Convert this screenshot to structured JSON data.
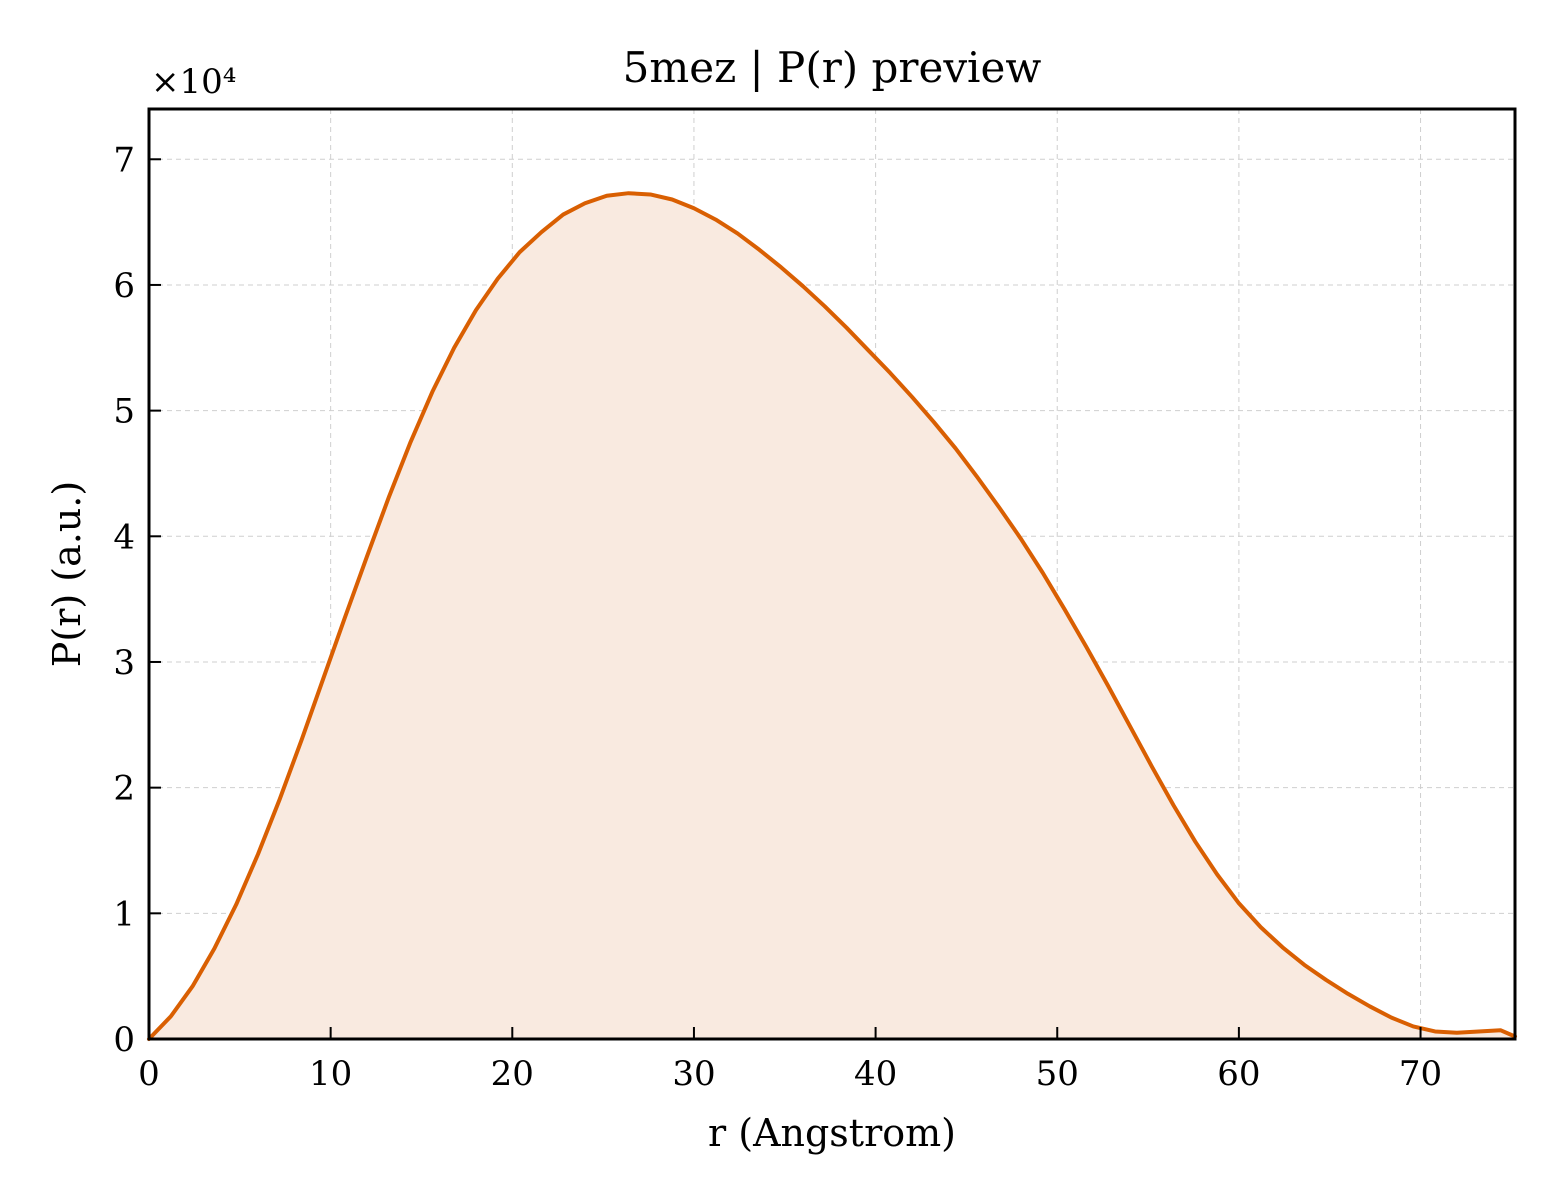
{
  "chart_data": {
    "type": "area",
    "title": "5mez | P(r) preview",
    "xlabel": "r (Angstrom)",
    "ylabel": "P(r) (a.u.)",
    "y_multiplier_label": "×10⁴",
    "xlim": [
      0,
      75.2
    ],
    "ylim": [
      0,
      7.4
    ],
    "x_ticks": [
      0,
      10,
      20,
      30,
      40,
      50,
      60,
      70
    ],
    "y_ticks": [
      0,
      1,
      2,
      3,
      4,
      5,
      6,
      7
    ],
    "x_tick_labels": [
      "0",
      "10",
      "20",
      "30",
      "40",
      "50",
      "60",
      "70"
    ],
    "y_tick_labels": [
      "0",
      "1",
      "2",
      "3",
      "4",
      "5",
      "6",
      "7"
    ],
    "grid": true,
    "colors": {
      "line": "#d95f02",
      "fill": "#f9eae0"
    },
    "series": [
      {
        "x": [
          0,
          1.2,
          2.4,
          3.6,
          4.8,
          6.0,
          7.2,
          8.4,
          9.6,
          10.8,
          12.0,
          13.2,
          14.4,
          15.6,
          16.8,
          18.0,
          19.2,
          20.4,
          21.6,
          22.8,
          24.0,
          25.2,
          26.4,
          27.6,
          28.8,
          30.0,
          31.2,
          32.4,
          33.6,
          34.8,
          36.0,
          37.2,
          38.4,
          39.6,
          40.8,
          42.0,
          43.2,
          44.4,
          45.6,
          46.8,
          48.0,
          49.2,
          50.4,
          51.6,
          52.8,
          54.0,
          55.2,
          56.4,
          57.6,
          58.8,
          60.0,
          61.2,
          62.4,
          63.6,
          64.8,
          66.0,
          67.2,
          68.4,
          69.6,
          70.8,
          72.0,
          73.2,
          74.4,
          75.2
        ],
        "values": [
          0,
          0.18,
          0.42,
          0.72,
          1.07,
          1.47,
          1.91,
          2.38,
          2.87,
          3.36,
          3.84,
          4.31,
          4.75,
          5.15,
          5.5,
          5.8,
          6.05,
          6.26,
          6.42,
          6.56,
          6.65,
          6.71,
          6.73,
          6.72,
          6.68,
          6.61,
          6.52,
          6.41,
          6.28,
          6.14,
          5.99,
          5.83,
          5.66,
          5.48,
          5.3,
          5.11,
          4.91,
          4.7,
          4.47,
          4.23,
          3.98,
          3.71,
          3.42,
          3.12,
          2.81,
          2.49,
          2.17,
          1.86,
          1.57,
          1.31,
          1.08,
          0.89,
          0.73,
          0.59,
          0.47,
          0.36,
          0.26,
          0.17,
          0.1,
          0.06,
          0.05,
          0.06,
          0.07,
          0.02
        ]
      }
    ]
  }
}
